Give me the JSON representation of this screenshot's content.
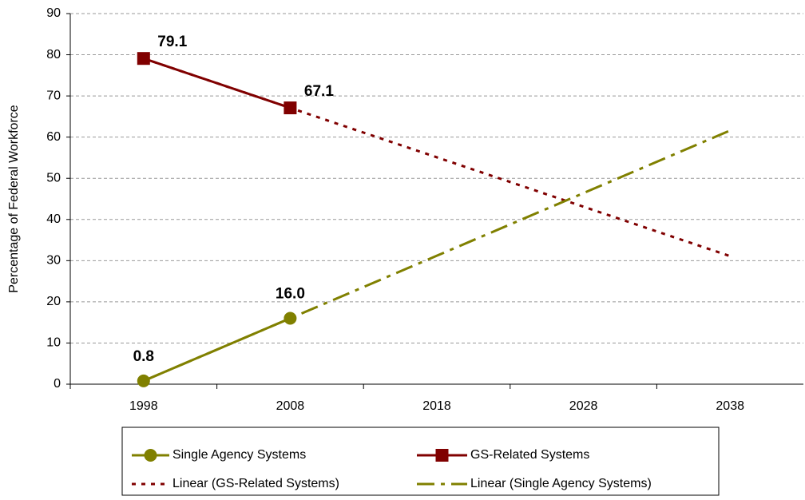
{
  "chart_data": {
    "type": "line",
    "y_label": "Percentage of Federal Workforce",
    "categories": [
      "1998",
      "2008",
      "2018",
      "2028",
      "2038"
    ],
    "series": [
      {
        "name": "Single Agency Systems",
        "color": "#808000",
        "marker": "circle",
        "style": "solid",
        "values": [
          0.8,
          16.0,
          null,
          null,
          null
        ],
        "value_labels": [
          "0.8",
          "16.0",
          null,
          null,
          null
        ]
      },
      {
        "name": "GS-Related Systems",
        "color": "#800000",
        "marker": "square",
        "style": "solid",
        "values": [
          79.1,
          67.1,
          null,
          null,
          null
        ],
        "value_labels": [
          "79.1",
          "67.1",
          null,
          null,
          null
        ]
      },
      {
        "name": "Linear (GS-Related Systems)",
        "color": "#800000",
        "marker": "none",
        "style": "dotted",
        "values": [
          79.1,
          67.1,
          55.1,
          43.1,
          31.1
        ]
      },
      {
        "name": "Linear (Single Agency Systems)",
        "color": "#808000",
        "marker": "none",
        "style": "dashdot",
        "values": [
          0.8,
          16.0,
          31.2,
          46.4,
          61.6
        ]
      }
    ],
    "ylim": [
      0,
      90
    ],
    "yticks": [
      0,
      10,
      20,
      30,
      40,
      50,
      60,
      70,
      80,
      90
    ],
    "grid": true,
    "legend": "bottom"
  }
}
